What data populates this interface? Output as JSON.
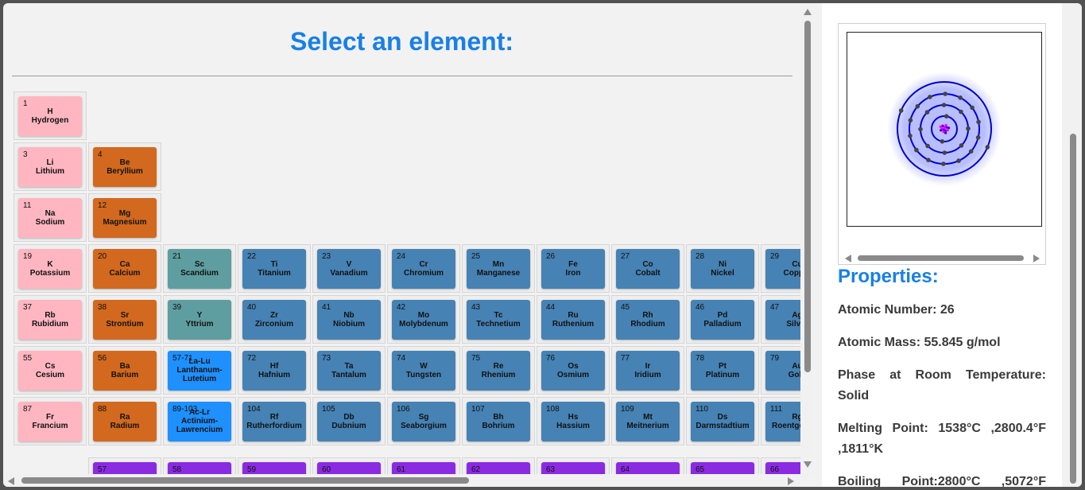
{
  "title": "Select an element:",
  "category_colors": {
    "alkali_or_h": "#ffb6c1",
    "alkaline_earth": "#d2691e",
    "group3": "#5f9ea0",
    "transition": "#4682b4",
    "series_placeholder": "#1e90ff",
    "f_block": "#8a2be2"
  },
  "elements": [
    {
      "num": "1",
      "sym": "H",
      "name": "Hydrogen",
      "cat": "alkali_or_h",
      "r": 0,
      "c": 0
    },
    {
      "num": "3",
      "sym": "Li",
      "name": "Lithium",
      "cat": "alkali_or_h",
      "r": 1,
      "c": 0
    },
    {
      "num": "4",
      "sym": "Be",
      "name": "Beryllium",
      "cat": "alkaline_earth",
      "r": 1,
      "c": 1
    },
    {
      "num": "11",
      "sym": "Na",
      "name": "Sodium",
      "cat": "alkali_or_h",
      "r": 2,
      "c": 0
    },
    {
      "num": "12",
      "sym": "Mg",
      "name": "Magnesium",
      "cat": "alkaline_earth",
      "r": 2,
      "c": 1
    },
    {
      "num": "19",
      "sym": "K",
      "name": "Potassium",
      "cat": "alkali_or_h",
      "r": 3,
      "c": 0
    },
    {
      "num": "20",
      "sym": "Ca",
      "name": "Calcium",
      "cat": "alkaline_earth",
      "r": 3,
      "c": 1
    },
    {
      "num": "21",
      "sym": "Sc",
      "name": "Scandium",
      "cat": "group3",
      "r": 3,
      "c": 2
    },
    {
      "num": "22",
      "sym": "Ti",
      "name": "Titanium",
      "cat": "transition",
      "r": 3,
      "c": 3
    },
    {
      "num": "23",
      "sym": "V",
      "name": "Vanadium",
      "cat": "transition",
      "r": 3,
      "c": 4
    },
    {
      "num": "24",
      "sym": "Cr",
      "name": "Chromium",
      "cat": "transition",
      "r": 3,
      "c": 5
    },
    {
      "num": "25",
      "sym": "Mn",
      "name": "Manganese",
      "cat": "transition",
      "r": 3,
      "c": 6
    },
    {
      "num": "26",
      "sym": "Fe",
      "name": "Iron",
      "cat": "transition",
      "r": 3,
      "c": 7
    },
    {
      "num": "27",
      "sym": "Co",
      "name": "Cobalt",
      "cat": "transition",
      "r": 3,
      "c": 8
    },
    {
      "num": "28",
      "sym": "Ni",
      "name": "Nickel",
      "cat": "transition",
      "r": 3,
      "c": 9
    },
    {
      "num": "29",
      "sym": "Cu",
      "name": "Copper",
      "cat": "transition",
      "r": 3,
      "c": 10
    },
    {
      "num": "37",
      "sym": "Rb",
      "name": "Rubidium",
      "cat": "alkali_or_h",
      "r": 4,
      "c": 0
    },
    {
      "num": "38",
      "sym": "Sr",
      "name": "Strontium",
      "cat": "alkaline_earth",
      "r": 4,
      "c": 1
    },
    {
      "num": "39",
      "sym": "Y",
      "name": "Yttrium",
      "cat": "group3",
      "r": 4,
      "c": 2
    },
    {
      "num": "40",
      "sym": "Zr",
      "name": "Zirconium",
      "cat": "transition",
      "r": 4,
      "c": 3
    },
    {
      "num": "41",
      "sym": "Nb",
      "name": "Niobium",
      "cat": "transition",
      "r": 4,
      "c": 4
    },
    {
      "num": "42",
      "sym": "Mo",
      "name": "Molybdenum",
      "cat": "transition",
      "r": 4,
      "c": 5
    },
    {
      "num": "43",
      "sym": "Tc",
      "name": "Technetium",
      "cat": "transition",
      "r": 4,
      "c": 6
    },
    {
      "num": "44",
      "sym": "Ru",
      "name": "Ruthenium",
      "cat": "transition",
      "r": 4,
      "c": 7
    },
    {
      "num": "45",
      "sym": "Rh",
      "name": "Rhodium",
      "cat": "transition",
      "r": 4,
      "c": 8
    },
    {
      "num": "46",
      "sym": "Pd",
      "name": "Palladium",
      "cat": "transition",
      "r": 4,
      "c": 9
    },
    {
      "num": "47",
      "sym": "Ag",
      "name": "Silver",
      "cat": "transition",
      "r": 4,
      "c": 10
    },
    {
      "num": "55",
      "sym": "Cs",
      "name": "Cesium",
      "cat": "alkali_or_h",
      "r": 5,
      "c": 0
    },
    {
      "num": "56",
      "sym": "Ba",
      "name": "Barium",
      "cat": "alkaline_earth",
      "r": 5,
      "c": 1
    },
    {
      "num": "57-71",
      "sym": "La-Lu",
      "name": "Lanthanum-Lutetium",
      "cat": "series_placeholder",
      "r": 5,
      "c": 2,
      "multi": true
    },
    {
      "num": "72",
      "sym": "Hf",
      "name": "Hafnium",
      "cat": "transition",
      "r": 5,
      "c": 3
    },
    {
      "num": "73",
      "sym": "Ta",
      "name": "Tantalum",
      "cat": "transition",
      "r": 5,
      "c": 4
    },
    {
      "num": "74",
      "sym": "W",
      "name": "Tungsten",
      "cat": "transition",
      "r": 5,
      "c": 5
    },
    {
      "num": "75",
      "sym": "Re",
      "name": "Rhenium",
      "cat": "transition",
      "r": 5,
      "c": 6
    },
    {
      "num": "76",
      "sym": "Os",
      "name": "Osmium",
      "cat": "transition",
      "r": 5,
      "c": 7
    },
    {
      "num": "77",
      "sym": "Ir",
      "name": "Iridium",
      "cat": "transition",
      "r": 5,
      "c": 8
    },
    {
      "num": "78",
      "sym": "Pt",
      "name": "Platinum",
      "cat": "transition",
      "r": 5,
      "c": 9
    },
    {
      "num": "79",
      "sym": "Au",
      "name": "Gold",
      "cat": "transition",
      "r": 5,
      "c": 10
    },
    {
      "num": "87",
      "sym": "Fr",
      "name": "Francium",
      "cat": "alkali_or_h",
      "r": 6,
      "c": 0
    },
    {
      "num": "88",
      "sym": "Ra",
      "name": "Radium",
      "cat": "alkaline_earth",
      "r": 6,
      "c": 1
    },
    {
      "num": "89-103",
      "sym": "Ac-Lr",
      "name": "Actinium-Lawrencium",
      "cat": "series_placeholder",
      "r": 6,
      "c": 2,
      "multi": true
    },
    {
      "num": "104",
      "sym": "Rf",
      "name": "Rutherfordium",
      "cat": "transition",
      "r": 6,
      "c": 3
    },
    {
      "num": "105",
      "sym": "Db",
      "name": "Dubnium",
      "cat": "transition",
      "r": 6,
      "c": 4
    },
    {
      "num": "106",
      "sym": "Sg",
      "name": "Seaborgium",
      "cat": "transition",
      "r": 6,
      "c": 5
    },
    {
      "num": "107",
      "sym": "Bh",
      "name": "Bohrium",
      "cat": "transition",
      "r": 6,
      "c": 6
    },
    {
      "num": "108",
      "sym": "Hs",
      "name": "Hassium",
      "cat": "transition",
      "r": 6,
      "c": 7
    },
    {
      "num": "109",
      "sym": "Mt",
      "name": "Meitnerium",
      "cat": "transition",
      "r": 6,
      "c": 8
    },
    {
      "num": "110",
      "sym": "Ds",
      "name": "Darmstadtium",
      "cat": "transition",
      "r": 6,
      "c": 9
    },
    {
      "num": "111",
      "sym": "Rg",
      "name": "Roentgenium",
      "cat": "transition",
      "r": 6,
      "c": 10
    },
    {
      "num": "57",
      "sym": "",
      "name": "",
      "cat": "f_block",
      "r": 7,
      "c": 1
    },
    {
      "num": "58",
      "sym": "",
      "name": "",
      "cat": "f_block",
      "r": 7,
      "c": 2
    },
    {
      "num": "59",
      "sym": "",
      "name": "",
      "cat": "f_block",
      "r": 7,
      "c": 3
    },
    {
      "num": "60",
      "sym": "",
      "name": "",
      "cat": "f_block",
      "r": 7,
      "c": 4
    },
    {
      "num": "61",
      "sym": "",
      "name": "",
      "cat": "f_block",
      "r": 7,
      "c": 5
    },
    {
      "num": "62",
      "sym": "",
      "name": "",
      "cat": "f_block",
      "r": 7,
      "c": 6
    },
    {
      "num": "63",
      "sym": "",
      "name": "",
      "cat": "f_block",
      "r": 7,
      "c": 7
    },
    {
      "num": "64",
      "sym": "",
      "name": "",
      "cat": "f_block",
      "r": 7,
      "c": 8
    },
    {
      "num": "65",
      "sym": "",
      "name": "",
      "cat": "f_block",
      "r": 7,
      "c": 9
    },
    {
      "num": "66",
      "sym": "",
      "name": "",
      "cat": "f_block",
      "r": 7,
      "c": 10
    }
  ],
  "atom": {
    "shells": [
      2,
      8,
      14,
      2
    ],
    "shell_color": "#0000cc",
    "electron_color": "#444444",
    "nucleus_colors": [
      "#ff00ff",
      "#4b00cc"
    ]
  },
  "properties": {
    "title": "Properties:",
    "atomic_number": "Atomic Number: 26",
    "atomic_mass": "Atomic Mass: 55.845 g/mol",
    "phase": "Phase at Room Temperature: Solid",
    "melting": "Melting Point: 1538°C ,2800.4°F ,1811°K",
    "boiling": "Boiling Point:2800°C ,5072°F"
  }
}
